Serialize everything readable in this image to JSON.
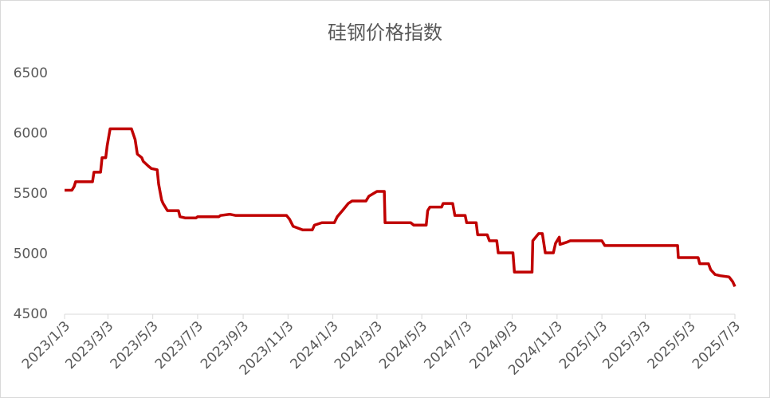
{
  "chart_data": {
    "type": "line",
    "title": "硅钢价格指数",
    "x": [
      "2023/1/3",
      "2023/1/13",
      "2023/1/16",
      "2023/1/18",
      "2023/2/10",
      "2023/2/12",
      "2023/2/21",
      "2023/2/23",
      "2023/2/28",
      "2023/3/2",
      "2023/3/6",
      "2023/4/4",
      "2023/4/9",
      "2023/4/12",
      "2023/4/18",
      "2023/4/20",
      "2023/4/27",
      "2023/5/1",
      "2023/5/9",
      "2023/5/11",
      "2023/5/15",
      "2023/5/17",
      "2023/5/23",
      "2023/6/7",
      "2023/6/9",
      "2023/6/16",
      "2023/7/1",
      "2023/7/3",
      "2023/8/1",
      "2023/8/3",
      "2023/8/16",
      "2023/8/24",
      "2023/11/1",
      "2023/11/5",
      "2023/11/10",
      "2023/11/23",
      "2023/12/6",
      "2023/12/9",
      "2023/12/19",
      "2024/1/5",
      "2024/1/9",
      "2024/1/16",
      "2024/1/24",
      "2024/1/29",
      "2024/2/17",
      "2024/2/21",
      "2024/3/3",
      "2024/3/13",
      "2024/3/14",
      "2024/4/18",
      "2024/4/22",
      "2024/5/9",
      "2024/5/11",
      "2024/5/14",
      "2024/5/30",
      "2024/6/1",
      "2024/6/14",
      "2024/6/17",
      "2024/7/1",
      "2024/7/3",
      "2024/7/16",
      "2024/7/18",
      "2024/7/31",
      "2024/8/3",
      "2024/8/13",
      "2024/8/15",
      "2024/9/4",
      "2024/9/6",
      "2024/9/30",
      "2024/10/1",
      "2024/10/9",
      "2024/10/14",
      "2024/10/18",
      "2024/10/29",
      "2024/11/1",
      "2024/11/6",
      "2024/11/7",
      "2024/11/17",
      "2024/11/21",
      "2025/1/3",
      "2025/1/7",
      "2025/4/16",
      "2025/4/17",
      "2025/5/14",
      "2025/5/16",
      "2025/5/28",
      "2025/5/31",
      "2025/6/6",
      "2025/6/13",
      "2025/6/25",
      "2025/6/30",
      "2025/7/3"
    ],
    "series": [
      {
        "color": "#c00000",
        "values": [
          5530,
          5530,
          5560,
          5600,
          5600,
          5680,
          5680,
          5800,
          5800,
          5900,
          6040,
          6040,
          5950,
          5830,
          5800,
          5770,
          5730,
          5710,
          5700,
          5580,
          5450,
          5420,
          5360,
          5360,
          5310,
          5300,
          5300,
          5310,
          5310,
          5320,
          5330,
          5320,
          5320,
          5290,
          5230,
          5200,
          5200,
          5240,
          5260,
          5260,
          5310,
          5360,
          5420,
          5440,
          5440,
          5480,
          5520,
          5520,
          5260,
          5260,
          5240,
          5240,
          5360,
          5390,
          5390,
          5420,
          5420,
          5320,
          5320,
          5260,
          5260,
          5160,
          5160,
          5110,
          5110,
          5010,
          5010,
          4850,
          4850,
          5110,
          5170,
          5170,
          5010,
          5010,
          5090,
          5140,
          5080,
          5100,
          5110,
          5110,
          5070,
          5070,
          4970,
          4970,
          4920,
          4920,
          4870,
          4830,
          4820,
          4810,
          4770,
          4730
        ]
      }
    ],
    "xlim": [
      "2023/1/3",
      "2025/7/3"
    ],
    "xticks": [
      "2023/1/3",
      "2023/3/3",
      "2023/5/3",
      "2023/7/3",
      "2023/9/3",
      "2023/11/3",
      "2024/1/3",
      "2024/3/3",
      "2024/5/3",
      "2024/7/3",
      "2024/9/3",
      "2024/11/3",
      "2025/1/3",
      "2025/3/3",
      "2025/5/3",
      "2025/7/3"
    ],
    "ylim": [
      4500,
      6500
    ],
    "yticks": [
      4500,
      5000,
      5500,
      6000,
      6500
    ],
    "grid": false
  }
}
